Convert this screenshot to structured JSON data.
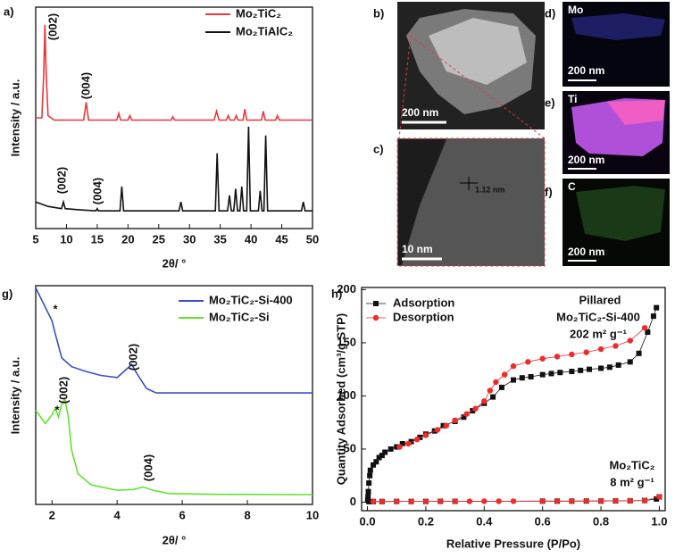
{
  "chart_data": [
    {
      "type": "line",
      "panel_label": "a)",
      "x_label": "2θ/ °",
      "y_label": "Intensity / a.u.",
      "xlim": [
        5,
        50
      ],
      "xticks": [
        5,
        10,
        15,
        20,
        25,
        30,
        35,
        40,
        45,
        50
      ],
      "ylim": [
        0,
        100
      ],
      "series": [
        {
          "name": "Mo₂TiC₂",
          "color": "#e8383d",
          "x": [
            5,
            6,
            6.3,
            6.5,
            6.7,
            7,
            8,
            12.8,
            13.2,
            13.6,
            18.2,
            18.5,
            18.8,
            20,
            20.3,
            20.6,
            27,
            27.3,
            27.6,
            34,
            34.4,
            34.8,
            36,
            36.3,
            36.6,
            37.3,
            37.6,
            37.9,
            38.7,
            39,
            39.3,
            41.7,
            42,
            42.3,
            44,
            44.3,
            44.6,
            50
          ],
          "values": [
            50,
            50,
            70,
            92,
            70,
            51,
            49,
            49,
            57,
            49,
            49,
            52,
            49,
            49,
            51,
            49,
            49,
            50.5,
            49,
            49,
            53,
            49,
            49,
            51,
            49,
            49,
            51,
            49,
            49,
            54,
            49,
            49,
            53,
            49,
            49,
            51,
            49,
            49
          ]
        },
        {
          "name": "Mo₂TiAlC₂",
          "color": "#111111",
          "x": [
            5,
            7,
            9.2,
            9.5,
            9.8,
            12,
            14.8,
            15,
            15.2,
            18.7,
            19,
            19.3,
            25,
            28.3,
            28.6,
            28.9,
            34.2,
            34.5,
            34.8,
            36.2,
            36.5,
            36.8,
            37.2,
            37.5,
            37.8,
            38.2,
            38.5,
            38.8,
            39.3,
            39.6,
            39.9,
            41.2,
            41.5,
            41.8,
            42.1,
            42.4,
            42.7,
            48.2,
            48.5,
            48.8,
            50
          ],
          "values": [
            12,
            10,
            9,
            12,
            9,
            8.5,
            8,
            9,
            8,
            8,
            19,
            8,
            8,
            8,
            12,
            8,
            8,
            34,
            8,
            8,
            15,
            8,
            8,
            18,
            8,
            8,
            19,
            8,
            8,
            46,
            8,
            8,
            17,
            8,
            8,
            42,
            8,
            8,
            12,
            8,
            8
          ]
        }
      ],
      "annotations": [
        "(002)",
        "(004)",
        "(002)",
        "(004)"
      ]
    },
    {
      "type": "line",
      "panel_label": "g)",
      "x_label": "2θ/ °",
      "y_label": "Intensity / a.u.",
      "xlim": [
        1.5,
        10
      ],
      "xticks": [
        2,
        4,
        6,
        8,
        10
      ],
      "ylim": [
        0,
        100
      ],
      "series": [
        {
          "name": "Mo₂TiC₂-Si-400",
          "color": "#3a4fc4",
          "x": [
            1.5,
            1.8,
            2.0,
            2.1,
            2.3,
            2.6,
            3,
            3.5,
            4,
            4.3,
            4.45,
            4.6,
            4.9,
            5.2,
            6,
            8,
            10
          ],
          "values": [
            99,
            90,
            84,
            78,
            67,
            63,
            61,
            59,
            58,
            62,
            64,
            60,
            53,
            51,
            51,
            51,
            51
          ]
        },
        {
          "name": "Mo₂TiC₂-Si",
          "color": "#66e033",
          "x": [
            1.5,
            1.65,
            1.8,
            2.0,
            2.1,
            2.2,
            2.3,
            2.4,
            2.5,
            2.6,
            2.8,
            3.2,
            4,
            4.5,
            4.8,
            5.1,
            5.6,
            7,
            10
          ],
          "values": [
            43,
            40,
            37,
            41,
            44,
            40,
            46,
            48,
            40,
            25,
            14,
            9,
            6.5,
            6.8,
            8,
            6.5,
            5,
            4.6,
            4.5
          ]
        }
      ],
      "annotations": [
        "*",
        "(002)",
        "*",
        "(002)",
        "(004)"
      ]
    },
    {
      "type": "scatter",
      "panel_label": "h)",
      "x_label": "Relative Pressure (P/Po)",
      "y_label": "Quantity Adsorbed (cm³/g STP)",
      "xlim": [
        -0.02,
        1.02
      ],
      "xticks": [
        {
          "value": 0,
          "label": "0.0"
        },
        0.2,
        0.4,
        0.6,
        0.8,
        {
          "value": 1,
          "label": "1.0"
        }
      ],
      "ylim": [
        -8,
        202
      ],
      "yticks": [
        0,
        50,
        100,
        150,
        200
      ],
      "series": [
        {
          "name": "Adsorption",
          "color": "#111111",
          "marker": "square",
          "x": [
            0.001,
            0.002,
            0.003,
            0.005,
            0.008,
            0.01,
            0.02,
            0.03,
            0.04,
            0.05,
            0.06,
            0.08,
            0.1,
            0.12,
            0.15,
            0.18,
            0.2,
            0.23,
            0.26,
            0.3,
            0.33,
            0.36,
            0.4,
            0.43,
            0.46,
            0.5,
            0.53,
            0.56,
            0.6,
            0.63,
            0.66,
            0.7,
            0.73,
            0.76,
            0.8,
            0.83,
            0.86,
            0.9,
            0.93,
            0.96,
            0.98,
            0.99
          ],
          "values": [
            2,
            5,
            10,
            18,
            25,
            30,
            35,
            38,
            42,
            44,
            47,
            50,
            52,
            55,
            57,
            61,
            64,
            67,
            72,
            76,
            80,
            86,
            93,
            99,
            108,
            115,
            117,
            118,
            120,
            121,
            122,
            123,
            124,
            125,
            126,
            127,
            129,
            132,
            140,
            160,
            175,
            183
          ]
        },
        {
          "name": "Desorption",
          "color": "#ee2b2b",
          "marker": "circle",
          "x": [
            0.95,
            0.9,
            0.85,
            0.8,
            0.75,
            0.7,
            0.65,
            0.6,
            0.55,
            0.5,
            0.47,
            0.44,
            0.42,
            0.4,
            0.37,
            0.34,
            0.3,
            0.27,
            0.24,
            0.2,
            0.17,
            0.14,
            0.11
          ],
          "values": [
            164,
            152,
            147,
            144,
            141,
            139,
            137,
            135,
            132,
            128,
            120,
            113,
            105,
            95,
            88,
            83,
            77,
            72,
            68,
            63,
            59,
            55,
            52
          ]
        },
        {
          "color": "#111111",
          "marker": "square",
          "x": [
            0.005,
            0.02,
            0.05,
            0.1,
            0.15,
            0.2,
            0.25,
            0.3,
            0.6,
            0.65,
            0.7,
            0.75,
            0.8,
            0.85,
            0.9,
            0.95,
            0.99,
            1.0
          ],
          "values": [
            0.5,
            0.6,
            0.6,
            0.7,
            0.7,
            0.7,
            0.8,
            0.8,
            1,
            1,
            1,
            1.1,
            1.1,
            1.2,
            1.3,
            1.6,
            3,
            5
          ]
        },
        {
          "color": "#ee2b2b",
          "marker": "circle",
          "x": [
            1.0,
            0.95,
            0.9,
            0.85,
            0.8,
            0.75,
            0.7,
            0.65,
            0.6,
            0.5,
            0.45,
            0.4,
            0.35,
            0.3,
            0.25,
            0.2,
            0.15,
            0.1,
            0.05,
            0.02
          ],
          "values": [
            5,
            1.5,
            1.3,
            1.2,
            1.1,
            1.1,
            1,
            1,
            1,
            0.9,
            0.9,
            0.9,
            0.8,
            0.8,
            0.8,
            0.7,
            0.7,
            0.7,
            0.6,
            0.6
          ]
        }
      ],
      "annotations": [
        "Pillared",
        "Mo₂TiC₂-Si-400",
        "202 m² g⁻¹",
        "Mo₂TiC₂",
        "8 m² g⁻¹"
      ]
    }
  ],
  "panels": [
    {
      "label": "b)",
      "scale_bar": "200 nm"
    },
    {
      "label": "c)",
      "annotation": "1.12 nm",
      "scale_bar": "10 nm"
    },
    {
      "label": "d)",
      "element": "Mo",
      "scale_bar": "200 nm"
    },
    {
      "label": "e)",
      "element": "Ti",
      "scale_bar": "200 nm"
    },
    {
      "label": "f)",
      "element": "C",
      "scale_bar": "200 nm"
    }
  ]
}
